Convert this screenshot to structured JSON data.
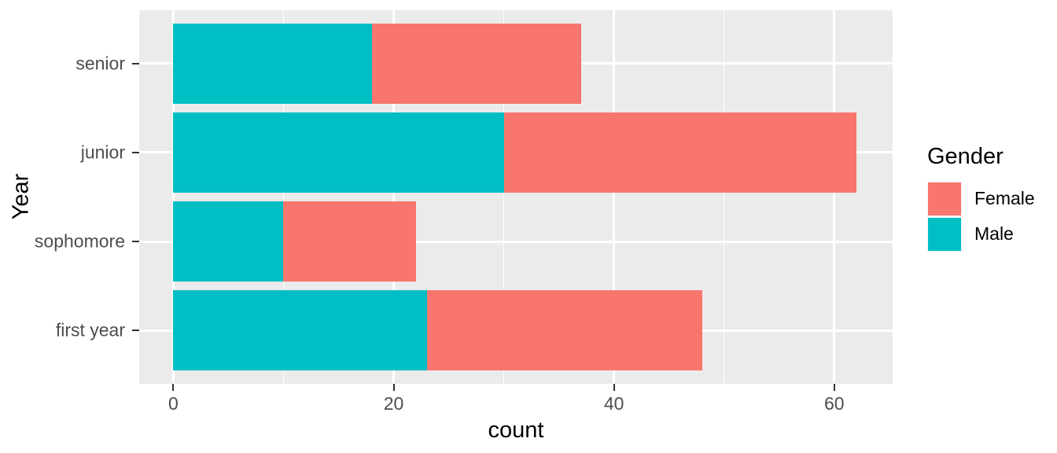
{
  "chart_data": {
    "type": "bar",
    "orientation": "horizontal",
    "stacked": true,
    "title": "",
    "xlabel": "count",
    "ylabel": "Year",
    "categories": [
      "senior",
      "junior",
      "sophomore",
      "first year"
    ],
    "series": [
      {
        "name": "Male",
        "color": "#00BFC4",
        "values": [
          18,
          30,
          10,
          23
        ]
      },
      {
        "name": "Female",
        "color": "#F8766D",
        "values": [
          19,
          32,
          12,
          25
        ]
      }
    ],
    "stack_totals": [
      37,
      62,
      22,
      48
    ],
    "x_ticks": [
      0,
      20,
      40,
      60
    ],
    "x_minor_ticks": [
      10,
      30,
      50
    ],
    "x_range": [
      -3.1,
      65.3
    ],
    "grid": true,
    "legend": {
      "title": "Gender",
      "position": "right",
      "entries": [
        {
          "label": "Female",
          "color": "#F8766D"
        },
        {
          "label": "Male",
          "color": "#00BFC4"
        }
      ]
    },
    "colors": {
      "panel_background": "#EBEBEB",
      "gridline": "#FFFFFF",
      "axis_text": "#4D4D4D",
      "axis_title": "#000000",
      "tick_mark": "#333333",
      "legend_key_background": "#F2F2F2",
      "female": "#F8766D",
      "male": "#00BFC4"
    }
  }
}
